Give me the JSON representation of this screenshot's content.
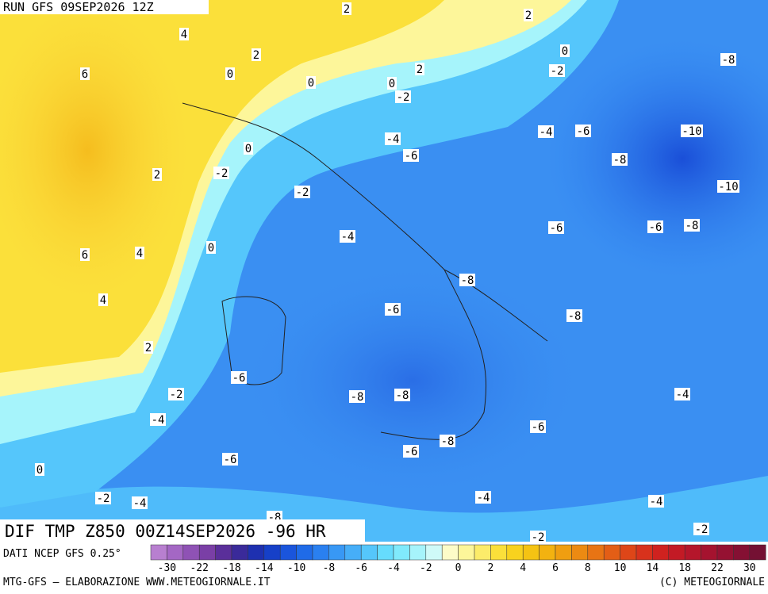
{
  "header": {
    "run": "RUN GFS 09SEP2026 12Z"
  },
  "map": {
    "contour_labels": [
      "2",
      "2",
      "4",
      "2",
      "0",
      "-8",
      "6",
      "0",
      "0",
      "2",
      "-2",
      "0",
      "-2",
      "-4",
      "-6",
      "-10",
      "-4",
      "0",
      "-6",
      "-8",
      "2",
      "-2",
      "-10",
      "-2",
      "-6",
      "-6",
      "-8",
      "-4",
      "6",
      "4",
      "0",
      "-8",
      "4",
      "-6",
      "-8",
      "2",
      "-6",
      "-2",
      "-8",
      "-8",
      "-4",
      "-4",
      "-6",
      "-8",
      "-6",
      "-6",
      "0",
      "-2",
      "-4",
      "-4",
      "-4",
      "-8",
      "-2",
      "-2"
    ]
  },
  "footer": {
    "field": "DIF TMP Z850 00Z14SEP2026 -96 HR",
    "source": "DATI NCEP GFS 0.25°",
    "credit": "MTG-GFS — ELABORAZIONE WWW.METEOGIORNALE.IT",
    "copyright": "(C) METEOGIORNALE"
  },
  "colorbar": {
    "colors": [
      "#b87fd0",
      "#a467c4",
      "#8f52b5",
      "#7a3fa6",
      "#5a2f9a",
      "#3a2a9a",
      "#1e30b0",
      "#1640c8",
      "#1a55dc",
      "#1f6be8",
      "#2a80f0",
      "#3898f5",
      "#46aef8",
      "#55c6fb",
      "#66dcfd",
      "#80eafc",
      "#a6f4fb",
      "#cffaf8",
      "#fdfcc8",
      "#fdf69a",
      "#fcec6a",
      "#fbe03a",
      "#f8d21e",
      "#f5c313",
      "#f3b210",
      "#f09e10",
      "#ec8a12",
      "#e87414",
      "#e35e16",
      "#de4618",
      "#d8321c",
      "#cf221f",
      "#c31a25",
      "#b5162b",
      "#a5132f",
      "#951132",
      "#851033",
      "#741033"
    ],
    "ticks": [
      -30,
      -22,
      -18,
      -14,
      -10,
      -8,
      -6,
      -4,
      -2,
      0,
      2,
      4,
      6,
      8,
      10,
      14,
      18,
      22,
      30
    ]
  }
}
